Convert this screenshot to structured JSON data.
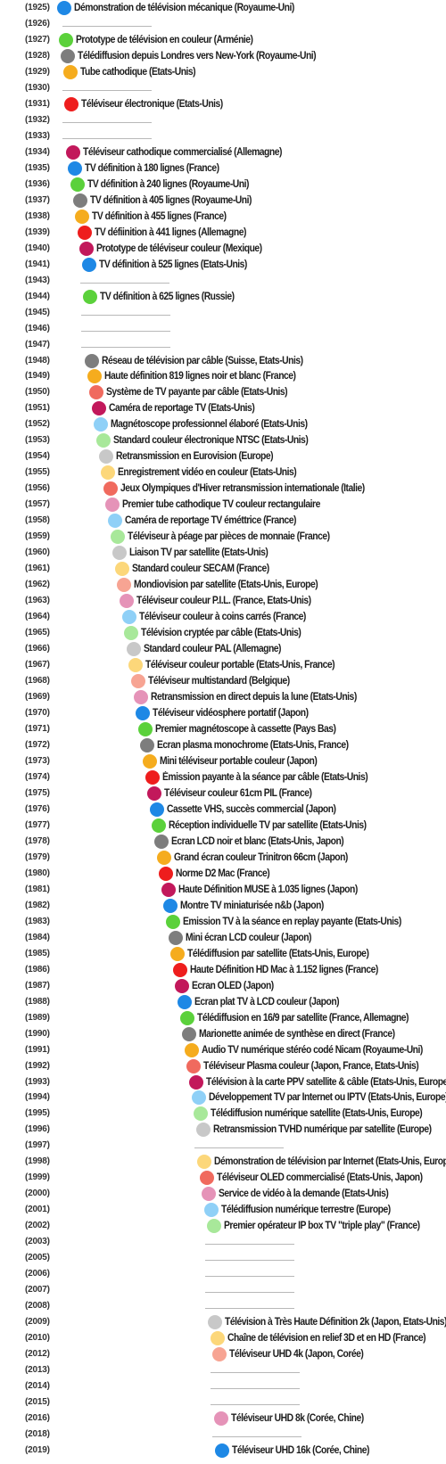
{
  "colors": {
    "blue": "#1e88e5",
    "green": "#5bd13b",
    "gray": "#7d7d7d",
    "orange": "#f5ac1e",
    "red": "#ee1d1d",
    "crimson": "#c2185b",
    "red_light": "#f06a5e",
    "blue_light": "#8fd0f7",
    "green_light": "#a8e89a",
    "gray_light": "#c8c8c8",
    "orange_light": "#fcd77a",
    "salmon": "#f7a493",
    "pink": "#e593b8"
  },
  "timeline": [
    {
      "year": "(1925)",
      "event": {
        "label": "Démonstration de télévision mécanique (Royaume-Uni)",
        "color": "blue"
      }
    },
    {
      "year": "(1926)"
    },
    {
      "year": "(1927)",
      "event": {
        "label": "Prototype de télévision en couleur (Arménie)",
        "color": "green"
      }
    },
    {
      "year": "(1928)",
      "event": {
        "label": "Télédiffusion depuis Londres vers New-York  (Royaume-Uni)",
        "color": "gray"
      }
    },
    {
      "year": "(1929)",
      "event": {
        "label": "Tube cathodique (Etats-Unis)",
        "color": "orange"
      }
    },
    {
      "year": "(1930)"
    },
    {
      "year": "(1931)",
      "event": {
        "label": "Téléviseur électronique (Etats-Unis)",
        "color": "red"
      }
    },
    {
      "year": "(1932)"
    },
    {
      "year": "(1933)"
    },
    {
      "year": "(1934)",
      "event": {
        "label": "Téléviseur cathodique commercialisé (Allemagne)",
        "color": "crimson"
      }
    },
    {
      "year": "(1935)",
      "event": {
        "label": "TV définition à 180 lignes (France)",
        "color": "blue"
      }
    },
    {
      "year": "(1936)",
      "event": {
        "label": "TV définition à 240 lignes (Royaume-Uni)",
        "color": "green"
      }
    },
    {
      "year": "(1937)",
      "event": {
        "label": "TV définition à 405 lignes (Royaume-Uni)",
        "color": "gray"
      }
    },
    {
      "year": "(1938)",
      "event": {
        "label": "TV définition à 455 lignes (France)",
        "color": "orange"
      }
    },
    {
      "year": "(1939)",
      "event": {
        "label": "TV défiinition à 441 lignes (Allemagne)",
        "color": "red"
      }
    },
    {
      "year": "(1940)",
      "event": {
        "label": "Prototype de téléviseur couleur (Mexique)",
        "color": "crimson"
      }
    },
    {
      "year": "(1941)",
      "event": {
        "label": "TV définition à 525 lignes (Etats-Unis)",
        "color": "blue"
      }
    },
    {
      "year": "(1943)"
    },
    {
      "year": "(1944)",
      "event": {
        "label": "TV définition à 625 lignes (Russie)",
        "color": "green"
      }
    },
    {
      "year": "(1945)"
    },
    {
      "year": "(1946)"
    },
    {
      "year": "(1947)"
    },
    {
      "year": "(1948)",
      "event": {
        "label": "Réseau de télévision par câble (Suisse, Etats-Unis)",
        "color": "gray"
      }
    },
    {
      "year": "(1949)",
      "event": {
        "label": "Haute définition 819 lignes noir et blanc (France)",
        "color": "orange"
      }
    },
    {
      "year": "(1950)",
      "event": {
        "label": "Système de TV payante par câble (Etats-Unis)",
        "color": "red_light"
      }
    },
    {
      "year": "(1951)",
      "event": {
        "label": "Caméra de reportage TV (Etats-Unis)",
        "color": "crimson"
      }
    },
    {
      "year": "(1952)",
      "event": {
        "label": "Magnétoscope professionnel élaboré (Etats-Unis)",
        "color": "blue_light"
      }
    },
    {
      "year": "(1953)",
      "event": {
        "label": "Standard couleur électronique NTSC (Etats-Unis)",
        "color": "green_light"
      }
    },
    {
      "year": "(1954)",
      "event": {
        "label": "Retransmission en Eurovision (Europe)",
        "color": "gray_light"
      }
    },
    {
      "year": "(1955)",
      "event": {
        "label": "Enregistrement vidéo en couleur (Etats-Unis)",
        "color": "orange_light"
      }
    },
    {
      "year": "(1956)",
      "event": {
        "label": "Jeux Olympiques d'Hiver retransmission internationale (Italie)",
        "color": "red_light"
      }
    },
    {
      "year": "(1957)",
      "event": {
        "label": "Premier tube cathodique TV couleur rectangulaire",
        "color": "pink"
      }
    },
    {
      "year": "(1958)",
      "event": {
        "label": "Caméra de reportage TV éméttrice (France)",
        "color": "blue_light"
      }
    },
    {
      "year": "(1959)",
      "event": {
        "label": "Téléviseur à péage par pièces de monnaie (France)",
        "color": "green_light"
      }
    },
    {
      "year": "(1960)",
      "event": {
        "label": "Liaison TV par satellite (Etats-Unis)",
        "color": "gray_light"
      }
    },
    {
      "year": "(1961)",
      "event": {
        "label": "Standard couleur SECAM (France)",
        "color": "orange_light"
      }
    },
    {
      "year": "(1962)",
      "event": {
        "label": "Mondiovision par satellite (Etats-Unis, Europe)",
        "color": "salmon"
      }
    },
    {
      "year": "(1963)",
      "event": {
        "label": "Téléviseur couleur P.I.L. (France, Etats-Unis)",
        "color": "pink"
      }
    },
    {
      "year": "(1964)",
      "event": {
        "label": "Téléviseur couleur à coins carrés (France)",
        "color": "blue_light"
      }
    },
    {
      "year": "(1965)",
      "event": {
        "label": "Télévision cryptée par câble (Etats-Unis)",
        "color": "green_light"
      }
    },
    {
      "year": "(1966)",
      "event": {
        "label": "Standard couleur PAL (Allemagne)",
        "color": "gray_light"
      }
    },
    {
      "year": "(1967)",
      "event": {
        "label": "Téléviseur couleur portable (Etats-Unis, France)",
        "color": "orange_light"
      }
    },
    {
      "year": "(1968)",
      "event": {
        "label": "Téléviseur multistandard (Belgique)",
        "color": "salmon"
      }
    },
    {
      "year": "(1969)",
      "event": {
        "label": "Retransmission en direct depuis la lune (Etats-Unis)",
        "color": "pink"
      }
    },
    {
      "year": "(1970)",
      "event": {
        "label": "Téléviseur vidéosphere portatif (Japon)",
        "color": "blue"
      }
    },
    {
      "year": "(1971)",
      "event": {
        "label": "Premier magnétoscope à cassette (Pays Bas)",
        "color": "green"
      }
    },
    {
      "year": "(1972)",
      "event": {
        "label": "Ecran plasma monochrome (Etats-Unis, France)",
        "color": "gray"
      }
    },
    {
      "year": "(1973)",
      "event": {
        "label": "Mini téléviseur portable couleur (Japon)",
        "color": "orange"
      }
    },
    {
      "year": "(1974)",
      "event": {
        "label": "Émission payante à la séance par câble (Etats-Unis)",
        "color": "red"
      }
    },
    {
      "year": "(1975)",
      "event": {
        "label": "Téléviseur couleur 61cm PIL (France)",
        "color": "crimson"
      }
    },
    {
      "year": "(1976)",
      "event": {
        "label": "Cassette VHS, succès commercial (Japon)",
        "color": "blue"
      }
    },
    {
      "year": "(1977)",
      "event": {
        "label": "Réception individuelle TV par satellite (Etats-Unis)",
        "color": "green"
      }
    },
    {
      "year": "(1978)",
      "event": {
        "label": "Ecran LCD noir et blanc (Etats-Unis, Japon)",
        "color": "gray"
      }
    },
    {
      "year": "(1979)",
      "event": {
        "label": "Grand écran couleur Trinitron 66cm (Japon)",
        "color": "orange"
      }
    },
    {
      "year": "(1980)",
      "event": {
        "label": "Norme D2 Mac (France)",
        "color": "red"
      }
    },
    {
      "year": "(1981)",
      "event": {
        "label": "Haute Définition MUSE à 1.035 lignes (Japon)",
        "color": "crimson"
      }
    },
    {
      "year": "(1982)",
      "event": {
        "label": "Montre TV miniaturisée n&b (Japon)",
        "color": "blue"
      }
    },
    {
      "year": "(1983)",
      "event": {
        "label": "Emission TV à la séance en replay payante (Etats-Unis)",
        "color": "green"
      }
    },
    {
      "year": "(1984)",
      "event": {
        "label": "Mini écran LCD couleur (Japon)",
        "color": "gray"
      }
    },
    {
      "year": "(1985)",
      "event": {
        "label": "Télédiffusion par satellite (Etats-Unis, Europe)",
        "color": "orange"
      }
    },
    {
      "year": "(1986)",
      "event": {
        "label": "Haute Définition HD Mac à 1.152 lignes (France)",
        "color": "red"
      }
    },
    {
      "year": "(1987)",
      "event": {
        "label": "Ecran OLED (Japon)",
        "color": "crimson"
      }
    },
    {
      "year": "(1988)",
      "event": {
        "label": "Ecran plat TV à LCD couleur (Japon)",
        "color": "blue"
      }
    },
    {
      "year": "(1989)",
      "event": {
        "label": "Télédiffusion en 16/9 par satellite (France, Allemagne)",
        "color": "green"
      }
    },
    {
      "year": "(1990)",
      "event": {
        "label": "Marionette animée de synthèse en direct (France)",
        "color": "gray"
      }
    },
    {
      "year": "(1991)",
      "event": {
        "label": "Audio TV numérique stéréo codé Nicam (Royaume-Uni)",
        "color": "orange"
      }
    },
    {
      "year": "(1992)",
      "event": {
        "label": "Téléviseur Plasma couleur (Japon, France, Etats-Unis)",
        "color": "red_light"
      }
    },
    {
      "year": "(1993)",
      "event": {
        "label": "Télévision à la carte PPV satellite & câble (Etats-Unis, Europe)",
        "color": "crimson"
      }
    },
    {
      "year": "(1994)",
      "event": {
        "label": "Développement TV par Internet ou IPTV (Etats-Unis, Europe)",
        "color": "blue_light"
      }
    },
    {
      "year": "(1995)",
      "event": {
        "label": "Télédiffusion numérique satellite (Etats-Unis, Europe)",
        "color": "green_light"
      }
    },
    {
      "year": "(1996)",
      "event": {
        "label": "Retransmission TVHD numérique par satellite (Europe)",
        "color": "gray_light"
      }
    },
    {
      "year": "(1997)"
    },
    {
      "year": "(1998)",
      "event": {
        "label": "Démonstration de télévision par Internet (Etats-Unis, Europe)",
        "color": "orange_light"
      }
    },
    {
      "year": "(1999)",
      "event": {
        "label": "Téléviseur OLED commercialisé (Etats-Unis, Japon)",
        "color": "red_light"
      }
    },
    {
      "year": "(2000)",
      "event": {
        "label": "Service de vidéo à la demande (Etats-Unis)",
        "color": "pink"
      }
    },
    {
      "year": "(2001)",
      "event": {
        "label": "Télédiffusion numérique terrestre (Europe)",
        "color": "blue_light"
      }
    },
    {
      "year": "(2002)",
      "event": {
        "label": "Premier opérateur IP box TV \"triple play\" (France)",
        "color": "green_light"
      }
    },
    {
      "year": "(2003)"
    },
    {
      "year": "(2005)"
    },
    {
      "year": "(2006)"
    },
    {
      "year": "(2007)"
    },
    {
      "year": "(2008)"
    },
    {
      "year": "(2009)",
      "event": {
        "label": "Télévision à Très Haute Définition 2k (Japon, Etats-Unis)",
        "color": "gray_light"
      }
    },
    {
      "year": "(2010)",
      "event": {
        "label": "Chaîne de télévision en relief 3D et en HD (France)",
        "color": "orange_light"
      }
    },
    {
      "year": "(2012)",
      "event": {
        "label": "Téléviseur UHD 4k (Japon, Corée)",
        "color": "salmon"
      }
    },
    {
      "year": "(2013)"
    },
    {
      "year": "(2014)"
    },
    {
      "year": "(2015)"
    },
    {
      "year": "(2016)",
      "event": {
        "label": "Téléviseur UHD 8k (Corée, Chine)",
        "color": "pink"
      }
    },
    {
      "year": "(2018)"
    },
    {
      "year": "(2019)",
      "event": {
        "label": "Téléviseur UHD 16k (Corée, Chine)",
        "color": "blue"
      }
    }
  ]
}
